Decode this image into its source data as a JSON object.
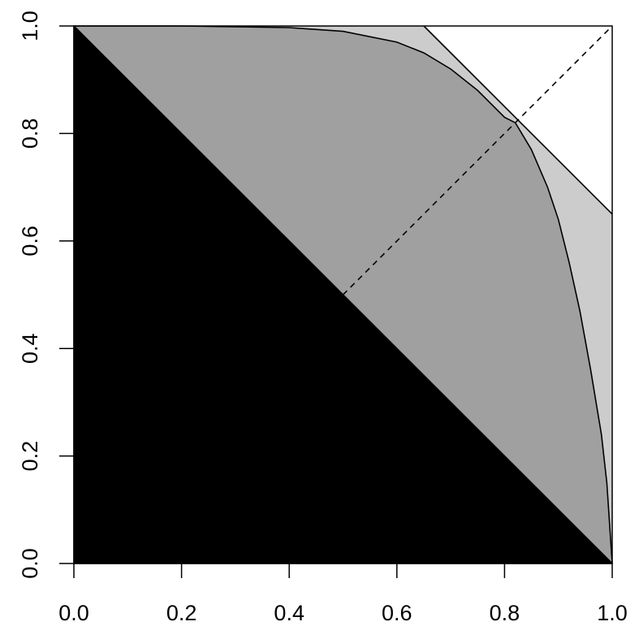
{
  "chart_data": {
    "type": "area",
    "title": "",
    "xlabel": "",
    "ylabel": "",
    "xlim": [
      0,
      1
    ],
    "ylim": [
      0,
      1
    ],
    "x_ticks": [
      "0.0",
      "0.2",
      "0.4",
      "0.6",
      "0.8",
      "1.0"
    ],
    "y_ticks": [
      "0.0",
      "0.2",
      "0.4",
      "0.6",
      "0.8",
      "1.0"
    ],
    "grid": false,
    "legend": "none",
    "regions": [
      {
        "fill": "#cccccc",
        "points": [
          [
            0,
            1
          ],
          [
            0.65,
            1
          ],
          [
            1,
            0.65
          ],
          [
            1,
            0
          ]
        ]
      },
      {
        "fill": "#a0a0a0",
        "points": [
          [
            0,
            1
          ],
          [
            0.2,
            1
          ],
          [
            0.4,
            0.997
          ],
          [
            0.5,
            0.99
          ],
          [
            0.6,
            0.97
          ],
          [
            0.65,
            0.95
          ],
          [
            0.7,
            0.92
          ],
          [
            0.75,
            0.88
          ],
          [
            0.8,
            0.83
          ],
          [
            0.82,
            0.82
          ],
          [
            0.85,
            0.77
          ],
          [
            0.88,
            0.7
          ],
          [
            0.9,
            0.64
          ],
          [
            0.92,
            0.56
          ],
          [
            0.94,
            0.47
          ],
          [
            0.96,
            0.36
          ],
          [
            0.98,
            0.24
          ],
          [
            0.99,
            0.15
          ],
          [
            1,
            0
          ]
        ]
      },
      {
        "fill": "#000000",
        "points": [
          [
            0,
            0
          ],
          [
            0,
            1
          ],
          [
            1,
            0
          ]
        ]
      }
    ],
    "lines": [
      {
        "style": "solid",
        "points": [
          [
            0.65,
            1
          ],
          [
            1,
            0.65
          ]
        ]
      },
      {
        "style": "dashed",
        "points": [
          [
            0.5,
            0.5
          ],
          [
            1,
            1
          ]
        ]
      },
      {
        "style": "solid",
        "points": [
          [
            0,
            1
          ],
          [
            1,
            0
          ]
        ]
      },
      {
        "style": "solid",
        "points": [
          [
            0,
            1
          ],
          [
            0.2,
            1
          ],
          [
            0.4,
            0.997
          ],
          [
            0.5,
            0.99
          ],
          [
            0.6,
            0.97
          ],
          [
            0.65,
            0.95
          ],
          [
            0.7,
            0.92
          ],
          [
            0.75,
            0.88
          ],
          [
            0.8,
            0.83
          ],
          [
            0.82,
            0.82
          ],
          [
            0.85,
            0.77
          ],
          [
            0.88,
            0.7
          ],
          [
            0.9,
            0.64
          ],
          [
            0.92,
            0.56
          ],
          [
            0.94,
            0.47
          ],
          [
            0.96,
            0.36
          ],
          [
            0.98,
            0.24
          ],
          [
            0.99,
            0.15
          ],
          [
            1,
            0
          ]
        ]
      }
    ]
  }
}
